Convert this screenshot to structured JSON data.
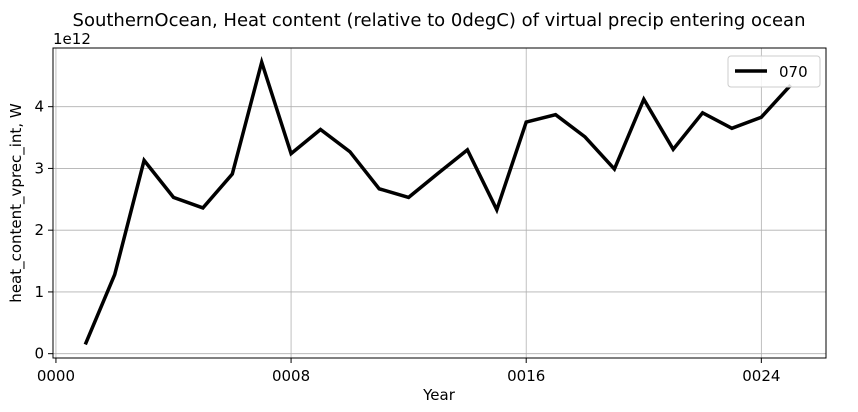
{
  "chart_data": {
    "type": "line",
    "title": "SouthernOcean, Heat content (relative to 0degC) of virtual precip entering ocean",
    "xlabel": "Year",
    "ylabel": "heat_content_vprec_int, W",
    "y_multiplier_label": "1e12",
    "xlim": [
      -0.1,
      26.2
    ],
    "ylim": [
      -0.07,
      4.95
    ],
    "x_ticks": [
      0,
      8,
      16,
      24
    ],
    "x_tick_labels": [
      "0000",
      "0008",
      "0016",
      "0024"
    ],
    "y_ticks": [
      0,
      1,
      2,
      3,
      4
    ],
    "y_tick_labels": [
      "0",
      "1",
      "2",
      "3",
      "4"
    ],
    "grid": true,
    "legend_position": "top-right",
    "series": [
      {
        "name": "070",
        "color": "#000000",
        "x": [
          1,
          2,
          3,
          4,
          5,
          6,
          7,
          8,
          9,
          10,
          11,
          12,
          13,
          14,
          15,
          16,
          17,
          18,
          19,
          20,
          21,
          22,
          23,
          24,
          25
        ],
        "values": [
          0.15,
          1.28,
          3.13,
          2.53,
          2.36,
          2.91,
          4.72,
          3.24,
          3.63,
          3.27,
          2.67,
          2.53,
          2.92,
          3.3,
          2.33,
          3.75,
          3.87,
          3.51,
          2.99,
          4.12,
          3.31,
          3.9,
          3.65,
          3.83,
          4.35
        ]
      }
    ]
  }
}
